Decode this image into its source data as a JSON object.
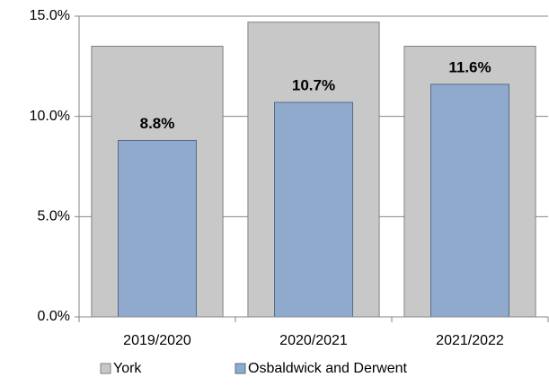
{
  "chart_data": {
    "type": "bar",
    "overlap": true,
    "categories": [
      "2019/2020",
      "2020/2021",
      "2021/2022"
    ],
    "series": [
      {
        "name": "York",
        "color": "#c8c8c8",
        "stroke": "#808080",
        "values": [
          13.5,
          14.7,
          13.5
        ]
      },
      {
        "name": "Osbaldwick and Derwent",
        "color": "#8faacc",
        "stroke": "#566d8a",
        "values": [
          8.8,
          10.7,
          11.6
        ],
        "value_labels": [
          "8.8%",
          "10.7%",
          "11.6%"
        ]
      }
    ],
    "ylim": [
      0,
      15
    ],
    "yticks": [
      {
        "value": 0,
        "label": "0.0%"
      },
      {
        "value": 5,
        "label": "5.0%"
      },
      {
        "value": 10,
        "label": "10.0%"
      },
      {
        "value": 15,
        "label": "15.0%"
      }
    ],
    "grid": true,
    "legend": "bottom"
  }
}
